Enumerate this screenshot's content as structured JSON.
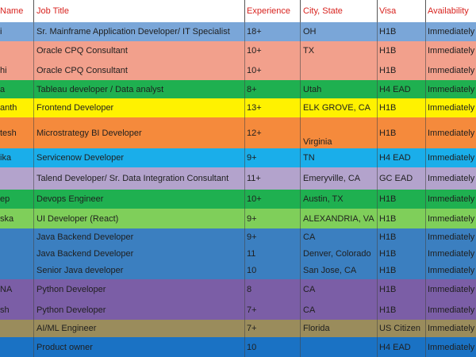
{
  "header": {
    "name": "Name",
    "job_title": "Job Title",
    "experience": "Experience",
    "city_state": "City, State",
    "visa": "Visa",
    "availability": "Availability"
  },
  "rows": [
    {
      "name": "i",
      "title": "Sr. Mainframe Application Developer/ IT Specialist",
      "exp": "18+",
      "city": "OH",
      "visa": "H1B",
      "avail": "Immediately",
      "bg": "#7aa6d8"
    },
    {
      "name": "",
      "title": "Oracle CPQ Consultant",
      "exp": "10+",
      "city": "TX",
      "visa": "H1B",
      "avail": "Immediately",
      "bg": "#f2a08c"
    },
    {
      "name": "hi",
      "title": "Oracle CPQ Consultant",
      "exp": "10+",
      "city": "",
      "visa": "H1B",
      "avail": "Immediately",
      "bg": "#f2a08c"
    },
    {
      "name": "a",
      "title": "Tableau developer / Data analyst",
      "exp": "8+",
      "city": "Utah",
      "visa": "H4 EAD",
      "avail": "Immediately",
      "bg": "#1fb050"
    },
    {
      "name": "anth",
      "title": "Frontend Developer",
      "exp": "13+",
      "city": "ELK GROVE, CA",
      "visa": "H1B",
      "avail": "Immediately",
      "bg": "#fff200"
    },
    {
      "name": "tesh",
      "title": "Microstrategy BI Developer",
      "exp": "12+",
      "city": "Virginia",
      "visa": "H1B",
      "avail": "Immediately",
      "bg": "#f58a3c"
    },
    {
      "name": "ika",
      "title": "Servicenow Developer",
      "exp": "9+",
      "city": "TN",
      "visa": "H4 EAD",
      "avail": "Immediately",
      "bg": "#1aaeea"
    },
    {
      "name": "",
      "title": "Talend Developer/ Sr. Data Integration Consultant",
      "exp": "11+",
      "city": "Emeryville, CA",
      "visa": "GC EAD",
      "avail": "Immediately",
      "bg": "#b3a3cc"
    },
    {
      "name": "ep",
      "title": "Devops Engineer",
      "exp": "10+",
      "city": "Austin, TX",
      "visa": "H1B",
      "avail": "Immediately",
      "bg": "#1fb050"
    },
    {
      "name": "ska",
      "title": "UI Developer (React)",
      "exp": "9+",
      "city": "ALEXANDRIA, VA",
      "visa": "H1B",
      "avail": "Immediately",
      "bg": "#7fcf5a"
    },
    {
      "name": "",
      "title": "Java Backend Developer",
      "exp": "9+",
      "city": "CA",
      "visa": "H1B",
      "avail": "Immediately",
      "bg": "#3b7fc0"
    },
    {
      "name": "",
      "title": "Java Backend Developer",
      "exp": "11",
      "city": "Denver, Colorado",
      "visa": "H1B",
      "avail": "Immediately",
      "bg": "#3b7fc0"
    },
    {
      "name": "",
      "title": "Senior Java developer",
      "exp": "10",
      "city": "San Jose, CA",
      "visa": "H1B",
      "avail": "Immediately",
      "bg": "#3b7fc0"
    },
    {
      "name": "NA",
      "title": "Python Developer",
      "exp": "8",
      "city": "CA",
      "visa": "H1B",
      "avail": "Immediately",
      "bg": "#7b5ea6"
    },
    {
      "name": "sh",
      "title": "Python Developer",
      "exp": "7+",
      "city": "CA",
      "visa": "H1B",
      "avail": "Immediately",
      "bg": "#7b5ea6"
    },
    {
      "name": "",
      "title": "AI/ML Engineer",
      "exp": "7+",
      "city": "Florida",
      "visa": "US Citizen",
      "avail": "Immediately",
      "bg": "#9a8c5c"
    },
    {
      "name": "",
      "title": "Product owner",
      "exp": "10",
      "city": "",
      "visa": "H4 EAD",
      "avail": "Immediately",
      "bg": "#1a72c4"
    }
  ]
}
